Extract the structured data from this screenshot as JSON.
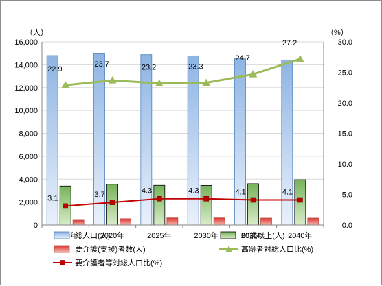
{
  "chart_data": {
    "type": "bar",
    "categories": [
      "2015年",
      "2020年",
      "2025年",
      "2030年",
      "2035年",
      "2040年"
    ],
    "y_left_unit": "（人）",
    "y_right_unit": "（%）",
    "y_left_range": [
      0,
      16000
    ],
    "y_left_ticks": [
      "0",
      "2,000",
      "4,000",
      "6,000",
      "8,000",
      "10,000",
      "12,000",
      "14,000",
      "16,000"
    ],
    "y_right_range": [
      0,
      30
    ],
    "y_right_ticks": [
      "0.0",
      "5.0",
      "10.0",
      "15.0",
      "20.0",
      "25.0",
      "30.0"
    ],
    "grid": "horizontal",
    "legend_position": "bottom",
    "series": [
      {
        "name": "総人口(人)",
        "kind": "bar",
        "axis": "left",
        "color": "#8eb4e3",
        "values": [
          14800,
          14950,
          14880,
          14780,
          14580,
          14420
        ]
      },
      {
        "name": "65歳以上(人)",
        "kind": "bar",
        "axis": "left",
        "color": "#93c47d",
        "values": [
          3400,
          3550,
          3460,
          3450,
          3600,
          3950
        ]
      },
      {
        "name": "要介護(支援)者数(人)",
        "kind": "bar",
        "axis": "left",
        "color": "#e0453f",
        "values": [
          420,
          550,
          620,
          620,
          600,
          600
        ]
      },
      {
        "name": "高齢者対総人口比(%)",
        "kind": "line",
        "axis": "right",
        "color": "#9bbb59",
        "marker": "triangle",
        "values": [
          22.9,
          23.7,
          23.2,
          23.3,
          24.7,
          27.2
        ],
        "labels": [
          "22.9",
          "23.7",
          "23.2",
          "23.3",
          "24.7",
          "27.2"
        ]
      },
      {
        "name": "要介護者等対総人口比(%)",
        "kind": "line",
        "axis": "right",
        "color": "#c00000",
        "marker": "square",
        "values": [
          3.1,
          3.7,
          4.3,
          4.3,
          4.1,
          4.1
        ],
        "labels": [
          "3.1",
          "3.7",
          "4.3",
          "4.3",
          "4.1",
          "4.1"
        ]
      }
    ]
  }
}
